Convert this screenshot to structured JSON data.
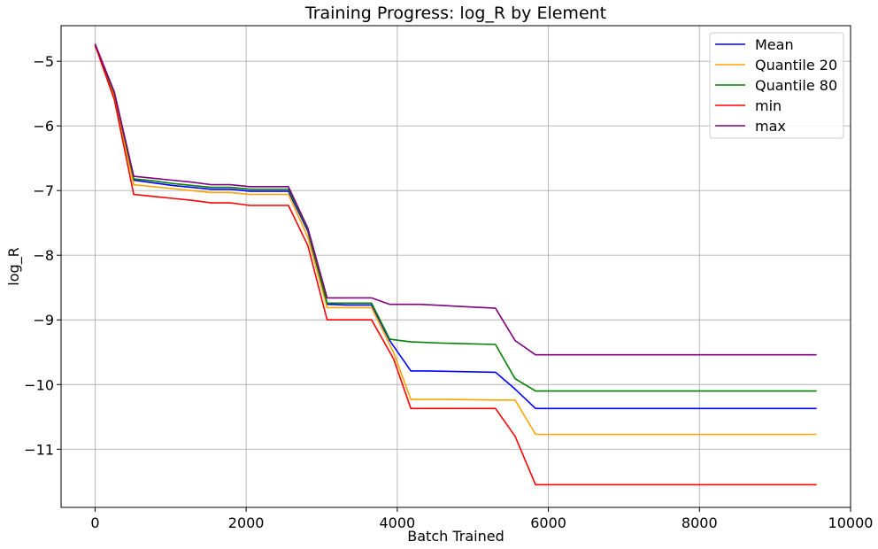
{
  "chart_data": {
    "type": "line",
    "title": "Training Progress: log_R by Element",
    "xlabel": "Batch Trained",
    "ylabel": "log_R",
    "xlim": [
      -450,
      10000
    ],
    "ylim": [
      -11.9,
      -4.45
    ],
    "xticks": [
      0,
      2000,
      4000,
      6000,
      8000,
      10000
    ],
    "xtick_labels": [
      "0",
      "2000",
      "4000",
      "6000",
      "8000",
      "10000"
    ],
    "yticks": [
      -11,
      -10,
      -9,
      -8,
      -7,
      -6,
      -5
    ],
    "ytick_labels": [
      "−11",
      "−10",
      "−9",
      "−8",
      "−7",
      "−6",
      "−5"
    ],
    "grid": true,
    "legend_position": "upper right",
    "series": [
      {
        "name": "Mean",
        "color": "#0000ff",
        "points": [
          [
            0,
            -4.75
          ],
          [
            256,
            -5.52
          ],
          [
            512,
            -6.84
          ],
          [
            768,
            -6.88
          ],
          [
            1024,
            -6.92
          ],
          [
            1280,
            -6.95
          ],
          [
            1536,
            -6.98
          ],
          [
            1792,
            -6.98
          ],
          [
            2048,
            -7.01
          ],
          [
            2304,
            -7.01
          ],
          [
            2560,
            -7.01
          ],
          [
            2816,
            -7.63
          ],
          [
            3072,
            -8.76
          ],
          [
            3328,
            -8.77
          ],
          [
            3584,
            -8.77
          ],
          [
            3660,
            -8.77
          ],
          [
            3900,
            -9.32
          ],
          [
            4180,
            -9.79
          ],
          [
            4400,
            -9.79
          ],
          [
            5300,
            -9.81
          ],
          [
            5560,
            -10.07
          ],
          [
            5830,
            -10.37
          ],
          [
            9550,
            -10.37
          ]
        ]
      },
      {
        "name": "Quantile 20",
        "color": "#ffa500",
        "points": [
          [
            0,
            -4.75
          ],
          [
            256,
            -5.55
          ],
          [
            512,
            -6.91
          ],
          [
            768,
            -6.94
          ],
          [
            1024,
            -6.97
          ],
          [
            1280,
            -7.0
          ],
          [
            1536,
            -7.03
          ],
          [
            1792,
            -7.03
          ],
          [
            2048,
            -7.06
          ],
          [
            2304,
            -7.06
          ],
          [
            2560,
            -7.06
          ],
          [
            2816,
            -7.72
          ],
          [
            3072,
            -8.81
          ],
          [
            3328,
            -8.81
          ],
          [
            3584,
            -8.81
          ],
          [
            3660,
            -8.81
          ],
          [
            3950,
            -9.5
          ],
          [
            4180,
            -10.23
          ],
          [
            4700,
            -10.23
          ],
          [
            5300,
            -10.24
          ],
          [
            5560,
            -10.24
          ],
          [
            5830,
            -10.77
          ],
          [
            9550,
            -10.77
          ]
        ]
      },
      {
        "name": "Quantile 80",
        "color": "#008000",
        "points": [
          [
            0,
            -4.75
          ],
          [
            256,
            -5.5
          ],
          [
            512,
            -6.82
          ],
          [
            768,
            -6.85
          ],
          [
            1024,
            -6.89
          ],
          [
            1280,
            -6.92
          ],
          [
            1536,
            -6.95
          ],
          [
            1792,
            -6.95
          ],
          [
            2048,
            -6.98
          ],
          [
            2304,
            -6.98
          ],
          [
            2560,
            -6.98
          ],
          [
            2816,
            -7.61
          ],
          [
            3072,
            -8.74
          ],
          [
            3328,
            -8.74
          ],
          [
            3584,
            -8.74
          ],
          [
            3660,
            -8.74
          ],
          [
            3900,
            -9.3
          ],
          [
            4180,
            -9.34
          ],
          [
            4600,
            -9.36
          ],
          [
            5300,
            -9.38
          ],
          [
            5560,
            -9.91
          ],
          [
            5830,
            -10.1
          ],
          [
            9550,
            -10.1
          ]
        ]
      },
      {
        "name": "min",
        "color": "#ff0000",
        "points": [
          [
            0,
            -4.75
          ],
          [
            256,
            -5.6
          ],
          [
            512,
            -7.06
          ],
          [
            768,
            -7.09
          ],
          [
            1024,
            -7.12
          ],
          [
            1280,
            -7.15
          ],
          [
            1536,
            -7.19
          ],
          [
            1792,
            -7.19
          ],
          [
            2048,
            -7.23
          ],
          [
            2304,
            -7.23
          ],
          [
            2560,
            -7.23
          ],
          [
            2816,
            -7.85
          ],
          [
            3072,
            -9.0
          ],
          [
            3328,
            -9.0
          ],
          [
            3584,
            -9.0
          ],
          [
            3660,
            -9.0
          ],
          [
            3950,
            -9.6
          ],
          [
            4180,
            -10.37
          ],
          [
            4600,
            -10.37
          ],
          [
            5300,
            -10.37
          ],
          [
            5560,
            -10.8
          ],
          [
            5830,
            -11.55
          ],
          [
            9550,
            -11.55
          ]
        ]
      },
      {
        "name": "max",
        "color": "#800080",
        "points": [
          [
            0,
            -4.73
          ],
          [
            256,
            -5.48
          ],
          [
            512,
            -6.78
          ],
          [
            768,
            -6.81
          ],
          [
            1024,
            -6.84
          ],
          [
            1280,
            -6.87
          ],
          [
            1536,
            -6.91
          ],
          [
            1792,
            -6.91
          ],
          [
            2048,
            -6.94
          ],
          [
            2304,
            -6.94
          ],
          [
            2560,
            -6.94
          ],
          [
            2816,
            -7.58
          ],
          [
            3072,
            -8.66
          ],
          [
            3328,
            -8.66
          ],
          [
            3584,
            -8.66
          ],
          [
            3660,
            -8.66
          ],
          [
            3900,
            -8.76
          ],
          [
            4300,
            -8.76
          ],
          [
            4800,
            -8.79
          ],
          [
            5300,
            -8.82
          ],
          [
            5560,
            -9.32
          ],
          [
            5830,
            -9.54
          ],
          [
            9550,
            -9.54
          ]
        ]
      }
    ]
  }
}
